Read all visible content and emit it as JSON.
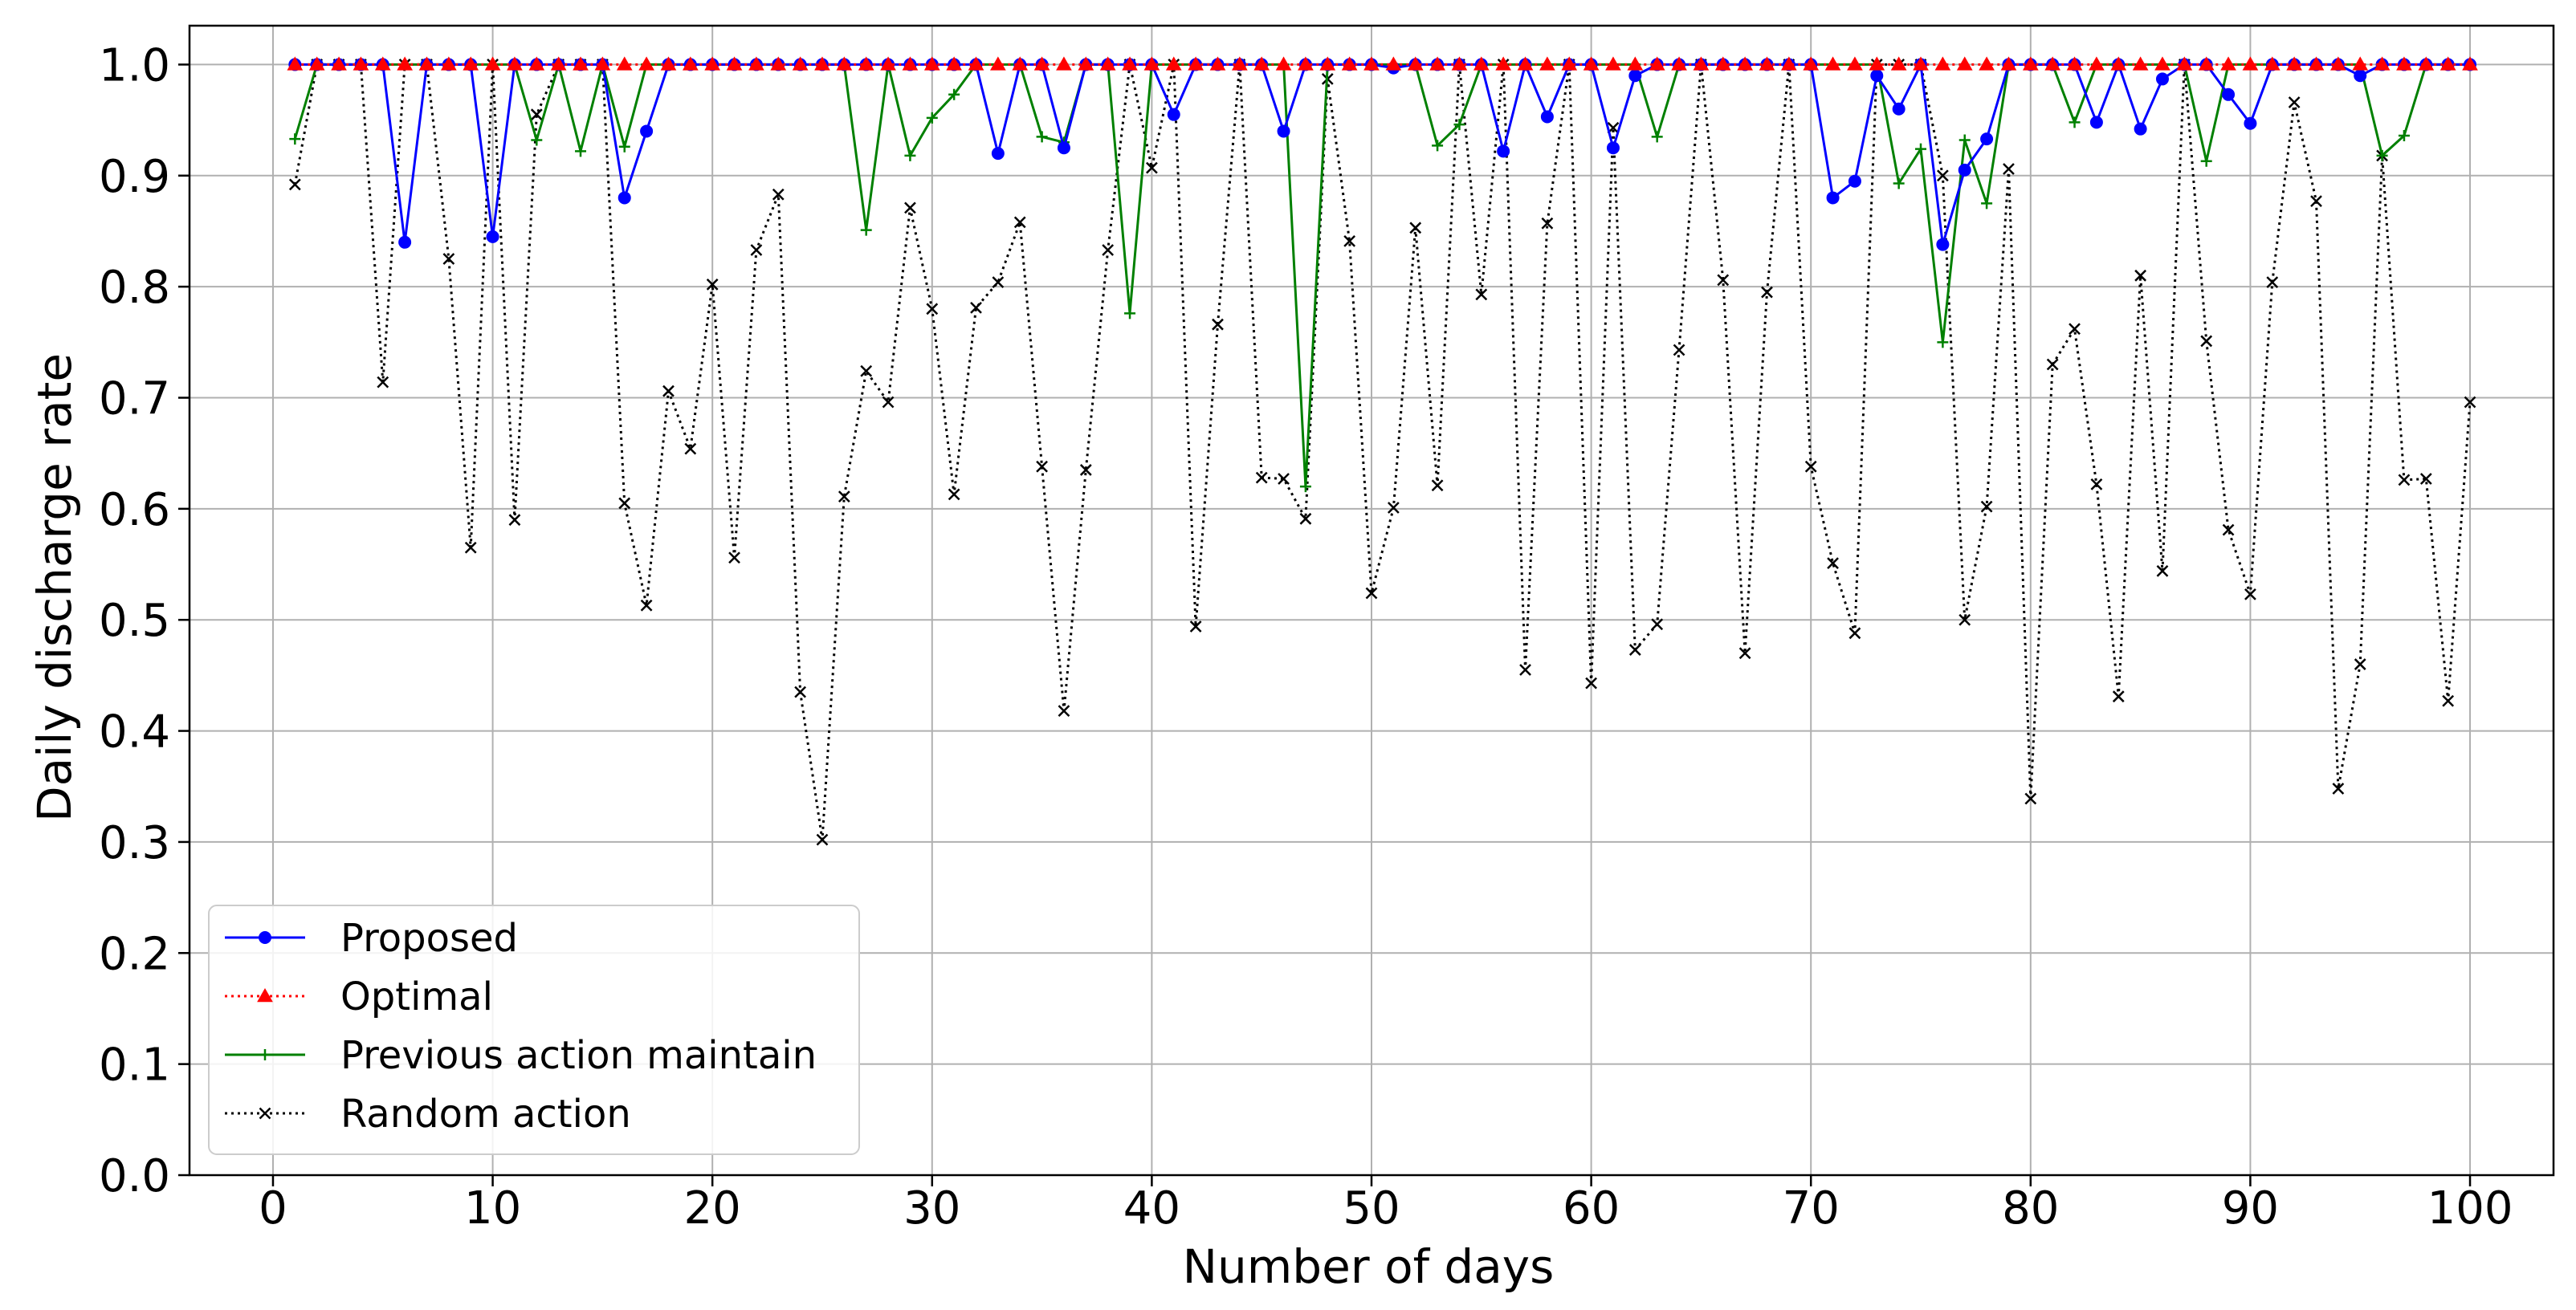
{
  "chart_data": {
    "type": "line",
    "title": "",
    "xlabel": "Number of days",
    "ylabel": "Daily discharge rate",
    "xlim": [
      -3.8,
      103.8
    ],
    "ylim": [
      0.0,
      1.035
    ],
    "xticks": [
      0,
      10,
      20,
      30,
      40,
      50,
      60,
      70,
      80,
      90,
      100
    ],
    "yticks": [
      0.0,
      0.1,
      0.2,
      0.3,
      0.4,
      0.5,
      0.6,
      0.7,
      0.8,
      0.9,
      1.0
    ],
    "xtick_labels": [
      "0",
      "10",
      "20",
      "30",
      "40",
      "50",
      "60",
      "70",
      "80",
      "90",
      "100"
    ],
    "ytick_labels": [
      "0.0",
      "0.1",
      "0.2",
      "0.3",
      "0.4",
      "0.5",
      "0.6",
      "0.7",
      "0.8",
      "0.9",
      "1.0"
    ],
    "grid": true,
    "legend_position": "lower-left",
    "x": [
      1,
      2,
      3,
      4,
      5,
      6,
      7,
      8,
      9,
      10,
      11,
      12,
      13,
      14,
      15,
      16,
      17,
      18,
      19,
      20,
      21,
      22,
      23,
      24,
      25,
      26,
      27,
      28,
      29,
      30,
      31,
      32,
      33,
      34,
      35,
      36,
      37,
      38,
      39,
      40,
      41,
      42,
      43,
      44,
      45,
      46,
      47,
      48,
      49,
      50,
      51,
      52,
      53,
      54,
      55,
      56,
      57,
      58,
      59,
      60,
      61,
      62,
      63,
      64,
      65,
      66,
      67,
      68,
      69,
      70,
      71,
      72,
      73,
      74,
      75,
      76,
      77,
      78,
      79,
      80,
      81,
      82,
      83,
      84,
      85,
      86,
      87,
      88,
      89,
      90,
      91,
      92,
      93,
      94,
      95,
      96,
      97,
      98,
      99,
      100
    ],
    "series": [
      {
        "name": "Proposed",
        "color": "#0000ff",
        "line_style": "solid",
        "marker": "circle",
        "values": [
          1.0,
          1.0,
          1.0,
          1.0,
          1.0,
          0.84,
          1.0,
          1.0,
          1.0,
          0.845,
          1.0,
          1.0,
          1.0,
          1.0,
          1.0,
          0.88,
          0.94,
          1.0,
          1.0,
          1.0,
          1.0,
          1.0,
          1.0,
          1.0,
          1.0,
          1.0,
          1.0,
          1.0,
          1.0,
          1.0,
          1.0,
          1.0,
          0.92,
          1.0,
          1.0,
          0.925,
          1.0,
          1.0,
          1.0,
          1.0,
          0.955,
          1.0,
          1.0,
          1.0,
          1.0,
          0.94,
          1.0,
          1.0,
          1.0,
          1.0,
          0.997,
          1.0,
          1.0,
          1.0,
          1.0,
          0.922,
          1.0,
          0.953,
          1.0,
          1.0,
          0.925,
          0.99,
          1.0,
          1.0,
          1.0,
          1.0,
          1.0,
          1.0,
          1.0,
          1.0,
          0.88,
          0.895,
          0.99,
          0.96,
          1.0,
          0.838,
          0.905,
          0.933,
          1.0,
          1.0,
          1.0,
          1.0,
          0.948,
          1.0,
          0.942,
          0.987,
          1.0,
          1.0,
          0.973,
          0.947,
          1.0,
          1.0,
          1.0,
          1.0,
          0.99,
          1.0,
          1.0,
          1.0,
          1.0,
          1.0
        ]
      },
      {
        "name": "Optimal",
        "color": "#ff0000",
        "line_style": "dotted",
        "marker": "triangle",
        "values": [
          1.0,
          1.0,
          1.0,
          1.0,
          1.0,
          1.0,
          1.0,
          1.0,
          1.0,
          1.0,
          1.0,
          1.0,
          1.0,
          1.0,
          1.0,
          1.0,
          1.0,
          1.0,
          1.0,
          1.0,
          1.0,
          1.0,
          1.0,
          1.0,
          1.0,
          1.0,
          1.0,
          1.0,
          1.0,
          1.0,
          1.0,
          1.0,
          1.0,
          1.0,
          1.0,
          1.0,
          1.0,
          1.0,
          1.0,
          1.0,
          1.0,
          1.0,
          1.0,
          1.0,
          1.0,
          1.0,
          1.0,
          1.0,
          1.0,
          1.0,
          1.0,
          1.0,
          1.0,
          1.0,
          1.0,
          1.0,
          1.0,
          1.0,
          1.0,
          1.0,
          1.0,
          1.0,
          1.0,
          1.0,
          1.0,
          1.0,
          1.0,
          1.0,
          1.0,
          1.0,
          1.0,
          1.0,
          1.0,
          1.0,
          1.0,
          1.0,
          1.0,
          1.0,
          1.0,
          1.0,
          1.0,
          1.0,
          1.0,
          1.0,
          1.0,
          1.0,
          1.0,
          1.0,
          1.0,
          1.0,
          1.0,
          1.0,
          1.0,
          1.0,
          1.0,
          1.0,
          1.0,
          1.0,
          1.0,
          1.0
        ]
      },
      {
        "name": "Previous action maintain",
        "color": "#008000",
        "line_style": "solid",
        "marker": "plus",
        "values": [
          0.933,
          1.0,
          1.0,
          1.0,
          1.0,
          1.0,
          1.0,
          1.0,
          1.0,
          1.0,
          1.0,
          0.932,
          1.0,
          0.922,
          1.0,
          0.926,
          1.0,
          1.0,
          1.0,
          1.0,
          1.0,
          1.0,
          1.0,
          1.0,
          1.0,
          1.0,
          0.851,
          1.0,
          0.918,
          0.952,
          0.973,
          1.0,
          1.0,
          1.0,
          0.935,
          0.93,
          1.0,
          1.0,
          0.776,
          1.0,
          1.0,
          1.0,
          1.0,
          1.0,
          1.0,
          1.0,
          0.62,
          1.0,
          1.0,
          1.0,
          1.0,
          1.0,
          0.927,
          0.946,
          1.0,
          1.0,
          1.0,
          1.0,
          1.0,
          1.0,
          1.0,
          1.0,
          0.935,
          1.0,
          1.0,
          1.0,
          1.0,
          1.0,
          1.0,
          1.0,
          1.0,
          1.0,
          1.0,
          0.893,
          0.924,
          0.75,
          0.932,
          0.875,
          1.0,
          1.0,
          1.0,
          0.948,
          1.0,
          1.0,
          1.0,
          1.0,
          1.0,
          0.913,
          1.0,
          1.0,
          1.0,
          1.0,
          1.0,
          1.0,
          1.0,
          0.918,
          0.936,
          1.0,
          1.0,
          1.0
        ]
      },
      {
        "name": "Random action",
        "color": "#000000",
        "line_style": "dotted",
        "marker": "x",
        "values": [
          0.892,
          1.0,
          1.0,
          1.0,
          0.714,
          1.0,
          1.0,
          0.825,
          0.565,
          1.0,
          0.59,
          0.955,
          1.0,
          1.0,
          1.0,
          0.605,
          0.513,
          0.706,
          0.654,
          0.802,
          0.556,
          0.833,
          0.883,
          0.435,
          0.302,
          0.611,
          0.724,
          0.696,
          0.871,
          0.78,
          0.613,
          0.781,
          0.804,
          0.858,
          0.638,
          0.418,
          0.635,
          0.833,
          1.0,
          0.907,
          1.0,
          0.494,
          0.766,
          1.0,
          0.628,
          0.627,
          0.591,
          0.987,
          0.841,
          0.524,
          0.601,
          0.853,
          0.621,
          1.0,
          0.793,
          1.0,
          0.455,
          0.857,
          1.0,
          0.443,
          0.943,
          0.473,
          0.496,
          0.743,
          1.0,
          0.806,
          0.47,
          0.795,
          1.0,
          0.638,
          0.551,
          0.488,
          1.0,
          1.0,
          1.0,
          0.9,
          0.5,
          0.602,
          0.906,
          0.339,
          0.73,
          0.762,
          0.622,
          0.431,
          0.81,
          0.544,
          1.0,
          0.751,
          0.581,
          0.523,
          0.804,
          0.966,
          0.877,
          0.348,
          0.46,
          0.918,
          0.626,
          0.627,
          0.427,
          0.696
        ]
      }
    ]
  }
}
